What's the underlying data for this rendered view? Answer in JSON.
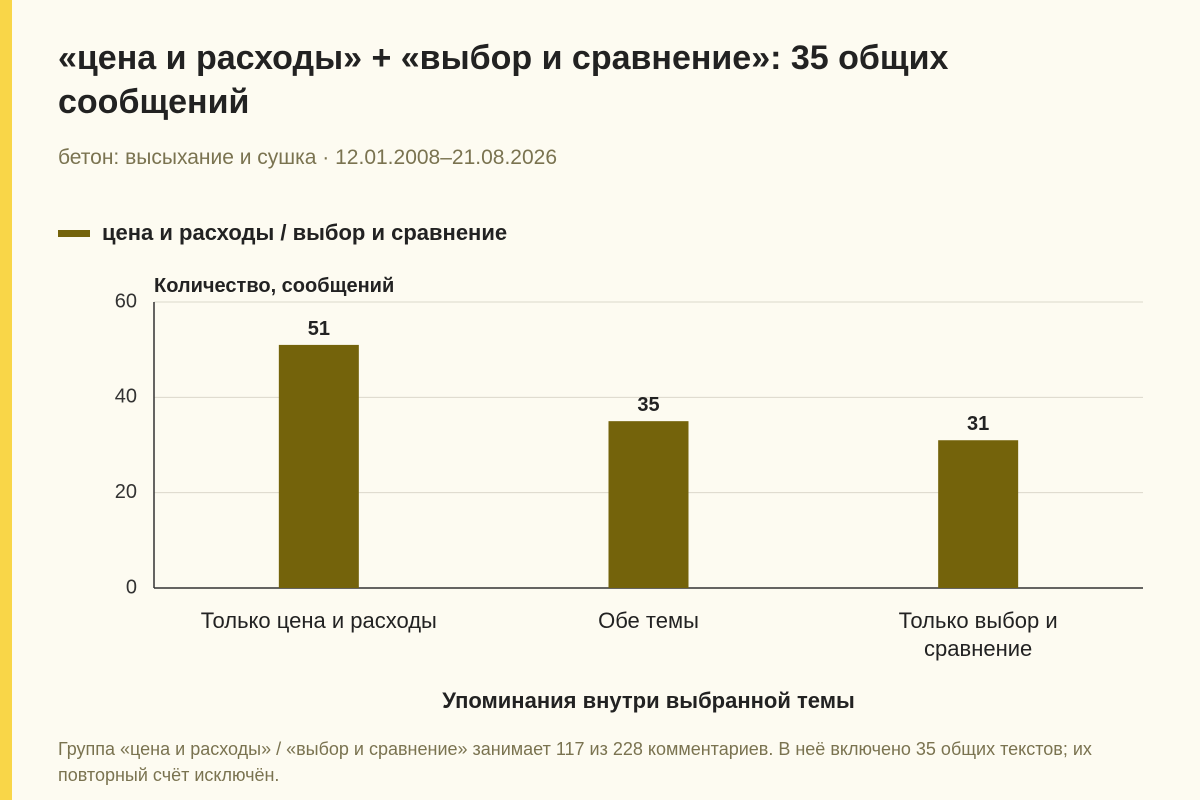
{
  "header": {
    "title": "«цена и расходы» + «выбор и сравнение»: 35 общих сообщений",
    "subtitle": "бетон: высыхание и сушка · 12.01.2008–21.08.2026"
  },
  "legend": {
    "label": "цена и расходы / выбор и сравнение"
  },
  "colors": {
    "accent_stripe": "#f9d648",
    "bar": "#74630b",
    "background": "#fdfbf1"
  },
  "chart_data": {
    "type": "bar",
    "categories": [
      [
        "Только цена и расходы"
      ],
      [
        "Обе темы"
      ],
      [
        "Только выбор и",
        "сравнение"
      ]
    ],
    "series": [
      {
        "name": "цена и расходы / выбор и сравнение",
        "values": [
          51,
          35,
          31
        ]
      }
    ],
    "ylabel": "Количество, сообщений",
    "xlabel": "Упоминания внутри выбранной темы",
    "ylim": [
      0,
      60
    ],
    "yticks": [
      0,
      20,
      40,
      60
    ],
    "grid": true,
    "data_labels": true,
    "legend_position": "top-left"
  },
  "footnote": "Группа «цена и расходы» / «выбор и сравнение» занимает 117 из 228 комментариев. В неё включено 35 общих текстов; их повторный счёт исключён."
}
